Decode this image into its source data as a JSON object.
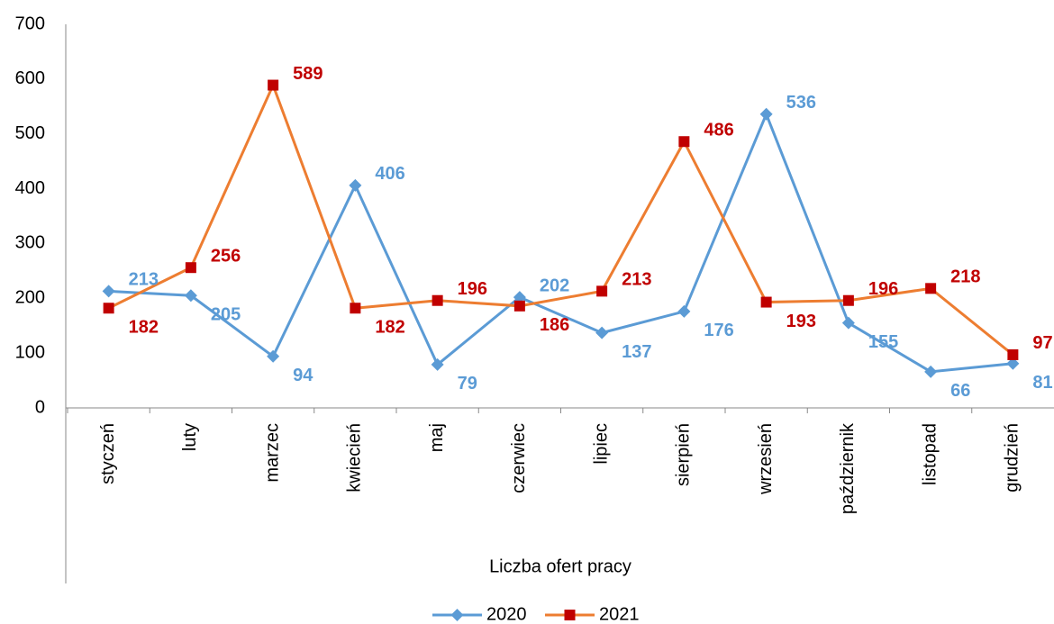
{
  "chart_data": {
    "type": "line",
    "x_label": "Liczba ofert pracy",
    "categories": [
      "styczeń",
      "luty",
      "marzec",
      "kwiecień",
      "maj",
      "czerwiec",
      "lipiec",
      "sierpień",
      "wrzesień",
      "październik",
      "listopad",
      "grudzień"
    ],
    "series": [
      {
        "name": "2020",
        "color": "#5b9bd5",
        "marker_color": "#5b9bd5",
        "label_color": "#5b9bd5",
        "marker": "diamond",
        "values": [
          213,
          205,
          94,
          406,
          79,
          202,
          137,
          176,
          536,
          155,
          66,
          81
        ]
      },
      {
        "name": "2021",
        "color": "#ed7d31",
        "marker_color": "#c00000",
        "label_color": "#c00000",
        "marker": "square",
        "values": [
          182,
          256,
          589,
          182,
          196,
          186,
          213,
          486,
          193,
          196,
          218,
          97
        ]
      }
    ],
    "ylim": [
      0,
      700
    ],
    "yticks": [
      0,
      100,
      200,
      300,
      400,
      500,
      600,
      700
    ],
    "grid": false,
    "legend": "bottom"
  }
}
